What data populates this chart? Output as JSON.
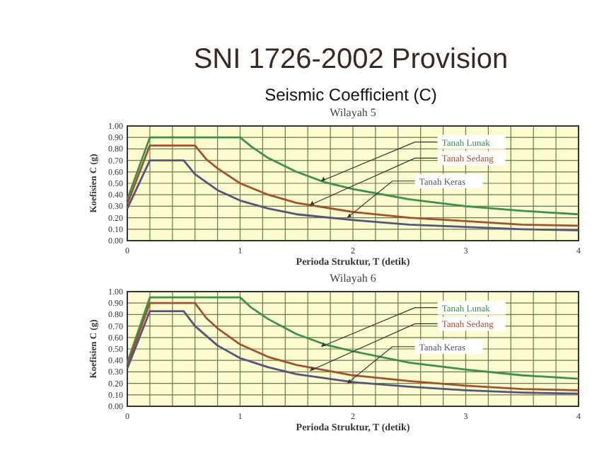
{
  "chart_data": [
    {
      "type": "line",
      "title": "Wilayah 5",
      "annotations": [
        "SNI 1726-2002 Provision",
        "Seismic Coefficient (C)"
      ],
      "xlabel": "Perioda Struktur, T  (detik)",
      "ylabel": "Koefisien C (g)",
      "xlim": [
        0,
        4
      ],
      "ylim": [
        0,
        1
      ],
      "xticks": [
        0,
        {
          "value": 0.2,
          "label": null
        },
        {
          "value": 0.4,
          "label": null
        },
        {
          "value": 0.6,
          "label": null
        },
        {
          "value": 0.8,
          "label": null
        },
        {
          "value": 1,
          "label": "1"
        },
        {
          "value": 1.2,
          "label": null
        },
        {
          "value": 1.4,
          "label": null
        },
        {
          "value": 1.6,
          "label": null
        },
        {
          "value": 1.8,
          "label": null
        },
        {
          "value": 2,
          "label": "2"
        },
        {
          "value": 2.2,
          "label": null
        },
        {
          "value": 2.4,
          "label": null
        },
        {
          "value": 2.6,
          "label": null
        },
        {
          "value": 2.8,
          "label": null
        },
        {
          "value": 3,
          "label": "3"
        },
        {
          "value": 3.2,
          "label": null
        },
        {
          "value": 3.4,
          "label": null
        },
        {
          "value": 3.6,
          "label": null
        },
        {
          "value": 3.8,
          "label": null
        },
        {
          "value": 4,
          "label": "4"
        }
      ],
      "yticks": [
        {
          "value": 0,
          "label": "0.00"
        },
        {
          "value": 0.1,
          "label": "0.10"
        },
        {
          "value": 0.2,
          "label": "0.20"
        },
        {
          "value": 0.3,
          "label": "0.30"
        },
        {
          "value": 0.4,
          "label": "0.40"
        },
        {
          "value": 0.5,
          "label": "0.50"
        },
        {
          "value": 0.6,
          "label": "0.60"
        },
        {
          "value": 0.7,
          "label": "0.70"
        },
        {
          "value": 0.8,
          "label": "0.80"
        },
        {
          "value": 0.9,
          "label": "0.90"
        },
        {
          "value": 1,
          "label": "1.00"
        }
      ],
      "grid": true,
      "legend": false,
      "series": [
        {
          "name": "Tanah Lunak",
          "color": "#3f8f4f",
          "x": [
            0,
            0.2,
            1,
            1.1,
            1.25,
            1.5,
            1.75,
            2,
            2.5,
            3,
            3.5,
            4
          ],
          "values": [
            0.36,
            0.9,
            0.9,
            0.82,
            0.72,
            0.6,
            0.51,
            0.45,
            0.36,
            0.3,
            0.26,
            0.23
          ]
        },
        {
          "name": "Tanah Sedang",
          "color": "#a0522d",
          "x": [
            0,
            0.2,
            0.6,
            0.7,
            0.8,
            1,
            1.25,
            1.5,
            2,
            2.5,
            3,
            3.5,
            4
          ],
          "values": [
            0.32,
            0.83,
            0.83,
            0.71,
            0.63,
            0.5,
            0.4,
            0.33,
            0.25,
            0.2,
            0.17,
            0.14,
            0.13
          ]
        },
        {
          "name": "Tanah Keras",
          "color": "#55557a",
          "x": [
            0,
            0.2,
            0.5,
            0.6,
            0.8,
            1,
            1.25,
            1.5,
            2,
            2.5,
            3,
            3.5,
            4
          ],
          "values": [
            0.28,
            0.7,
            0.7,
            0.58,
            0.44,
            0.35,
            0.28,
            0.23,
            0.18,
            0.14,
            0.12,
            0.1,
            0.09
          ]
        }
      ]
    },
    {
      "type": "line",
      "title": "Wilayah 6",
      "xlabel": "Perioda Struktur, T  (detik)",
      "ylabel": "Koefisien C (g)",
      "xlim": [
        0,
        4
      ],
      "ylim": [
        0,
        1
      ],
      "xticks": [
        0,
        {
          "value": 0.2,
          "label": null
        },
        {
          "value": 0.4,
          "label": null
        },
        {
          "value": 0.6,
          "label": null
        },
        {
          "value": 0.8,
          "label": null
        },
        {
          "value": 1,
          "label": "1"
        },
        {
          "value": 1.2,
          "label": null
        },
        {
          "value": 1.4,
          "label": null
        },
        {
          "value": 1.6,
          "label": null
        },
        {
          "value": 1.8,
          "label": null
        },
        {
          "value": 2,
          "label": "2"
        },
        {
          "value": 2.2,
          "label": null
        },
        {
          "value": 2.4,
          "label": null
        },
        {
          "value": 2.6,
          "label": null
        },
        {
          "value": 2.8,
          "label": null
        },
        {
          "value": 3,
          "label": "3"
        },
        {
          "value": 3.2,
          "label": null
        },
        {
          "value": 3.4,
          "label": null
        },
        {
          "value": 3.6,
          "label": null
        },
        {
          "value": 3.8,
          "label": null
        },
        {
          "value": 4,
          "label": "4"
        }
      ],
      "yticks": [
        {
          "value": 0,
          "label": "0.00"
        },
        {
          "value": 0.1,
          "label": "0.10"
        },
        {
          "value": 0.2,
          "label": "0.20"
        },
        {
          "value": 0.3,
          "label": "0.30"
        },
        {
          "value": 0.4,
          "label": "0.40"
        },
        {
          "value": 0.5,
          "label": "0.50"
        },
        {
          "value": 0.6,
          "label": "0.60"
        },
        {
          "value": 0.7,
          "label": "0.70"
        },
        {
          "value": 0.8,
          "label": "0.80"
        },
        {
          "value": 0.9,
          "label": "0.90"
        },
        {
          "value": 1,
          "label": "1.00"
        }
      ],
      "grid": true,
      "legend": false,
      "series": [
        {
          "name": "Tanah Lunak",
          "color": "#3f8f4f",
          "x": [
            0,
            0.2,
            1,
            1.1,
            1.25,
            1.5,
            1.75,
            2,
            2.5,
            3,
            3.5,
            4
          ],
          "values": [
            0.38,
            0.95,
            0.95,
            0.86,
            0.76,
            0.63,
            0.54,
            0.48,
            0.38,
            0.32,
            0.27,
            0.24
          ]
        },
        {
          "name": "Tanah Sedang",
          "color": "#a0522d",
          "x": [
            0,
            0.2,
            0.6,
            0.7,
            0.8,
            1,
            1.25,
            1.5,
            2,
            2.5,
            3,
            3.5,
            4
          ],
          "values": [
            0.36,
            0.9,
            0.9,
            0.77,
            0.68,
            0.54,
            0.43,
            0.36,
            0.27,
            0.22,
            0.18,
            0.15,
            0.14
          ]
        },
        {
          "name": "Tanah Keras",
          "color": "#55557a",
          "x": [
            0,
            0.2,
            0.5,
            0.6,
            0.8,
            1,
            1.25,
            1.5,
            2,
            2.5,
            3,
            3.5,
            4
          ],
          "values": [
            0.33,
            0.83,
            0.83,
            0.7,
            0.53,
            0.42,
            0.34,
            0.28,
            0.21,
            0.17,
            0.14,
            0.12,
            0.11
          ]
        }
      ]
    }
  ]
}
